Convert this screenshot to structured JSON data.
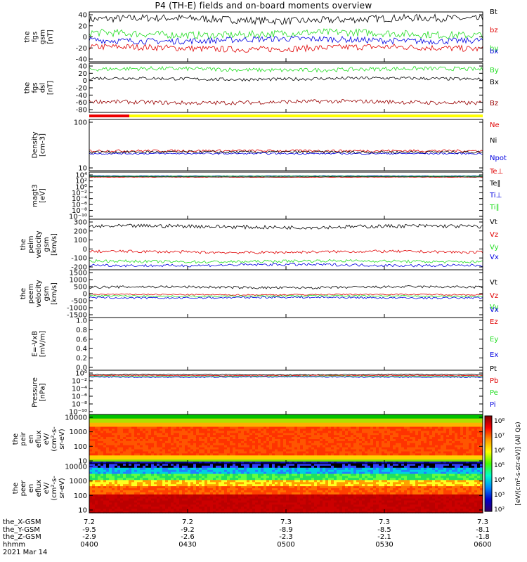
{
  "title": "P4 (TH-E) fields and on-board moments overview",
  "colors": {
    "black": "#000000",
    "red": "#e00000",
    "green": "#22dd22",
    "blue": "#0000e0",
    "darkred": "#990000",
    "yellow": "#ffff00",
    "barred": "#ee0000"
  },
  "chart_data": [
    {
      "type": "line",
      "ylabel": [
        "the",
        "fgs",
        "gsm",
        "[nT]"
      ],
      "yticks": [
        "40",
        "20",
        "0",
        "-20",
        "-40"
      ],
      "ylim": [
        -40,
        40
      ],
      "series": [
        {
          "name": "Bt",
          "color": "black",
          "base": 28,
          "noise": 6
        },
        {
          "name": "bz",
          "color": "red",
          "base": -18,
          "noise": 5
        },
        {
          "name": "by",
          "color": "green",
          "base": 5,
          "noise": 6
        },
        {
          "name": "bx",
          "color": "blue",
          "base": -5,
          "noise": 5
        }
      ]
    },
    {
      "type": "line",
      "ylabel": [
        "the",
        "fgs",
        "dsl",
        "[nT]"
      ],
      "yticks": [
        "40",
        "20",
        "0",
        "-20",
        "-40",
        "-60",
        "-80"
      ],
      "ylim": [
        -80,
        40
      ],
      "series": [
        {
          "name": "By",
          "color": "green",
          "base": 25,
          "noise": 5
        },
        {
          "name": "Bx",
          "color": "black",
          "base": 2,
          "noise": 4
        },
        {
          "name": "Bz",
          "color": "darkred",
          "base": -55,
          "noise": 5
        }
      ]
    },
    {
      "type": "line",
      "ylabel": [
        "Density",
        "[cm-3]"
      ],
      "yticks": [
        "100",
        "10"
      ],
      "ylog": true,
      "ylim": [
        3,
        300
      ],
      "series": [
        {
          "name": "Ne",
          "color": "red",
          "base": 18,
          "noise": 2
        },
        {
          "name": "Ni",
          "color": "black",
          "base": 16,
          "noise": 2
        },
        {
          "name": "Npot",
          "color": "blue",
          "base": 14,
          "noise": 1
        }
      ]
    },
    {
      "type": "line",
      "ylabel": [
        "magt3",
        "[eV]"
      ],
      "yticks": [
        "10⁴",
        "10²",
        "10⁰",
        "10⁻²",
        "10⁻⁴",
        "10⁻⁶",
        "10⁻⁸",
        "10⁻¹⁰"
      ],
      "ylim": [
        -10,
        4
      ],
      "series": [
        {
          "name": "Te⊥",
          "color": "red",
          "base": 2.5,
          "noise": 0.05
        },
        {
          "name": "Te∥",
          "color": "black",
          "base": 2.6,
          "noise": 0.05
        },
        {
          "name": "Ti⊥",
          "color": "blue",
          "base": 2.9,
          "noise": 0.05
        },
        {
          "name": "Ti∥",
          "color": "green",
          "base": 2.8,
          "noise": 0.05
        }
      ]
    },
    {
      "type": "line",
      "ylabel": [
        "the",
        "peim",
        "velocity",
        "gsm",
        "[km/s]"
      ],
      "yticks": [
        "300",
        "200",
        "100",
        "0",
        "-100",
        "-200"
      ],
      "ylim": [
        -220,
        320
      ],
      "series": [
        {
          "name": "Vt",
          "color": "black",
          "base": 240,
          "noise": 20
        },
        {
          "name": "Vz",
          "color": "red",
          "base": -30,
          "noise": 15
        },
        {
          "name": "Vy",
          "color": "green",
          "base": -130,
          "noise": 15
        },
        {
          "name": "Vx",
          "color": "blue",
          "base": -170,
          "noise": 15
        }
      ]
    },
    {
      "type": "line",
      "ylabel": [
        "the",
        "peem",
        "velocity",
        "gsm",
        "[km/s]"
      ],
      "yticks": [
        "1500",
        "1000",
        "500",
        "0",
        "-500",
        "-1000",
        "-1500"
      ],
      "ylim": [
        -1500,
        1500
      ],
      "series": [
        {
          "name": "Vt",
          "color": "black",
          "base": 400,
          "noise": 80
        },
        {
          "name": "Vz",
          "color": "red",
          "base": -60,
          "noise": 40
        },
        {
          "name": "Vy",
          "color": "green",
          "base": -150,
          "noise": 50
        },
        {
          "name": "Vx",
          "color": "blue",
          "base": -250,
          "noise": 60
        }
      ]
    },
    {
      "type": "line",
      "ylabel": [
        "E=-VxB",
        "[mV/m]"
      ],
      "yticks": [
        "1.0",
        "0.8",
        "0.6",
        "0.4",
        "0.2",
        "0.0"
      ],
      "ylim": [
        0,
        1
      ],
      "series": [
        {
          "name": "Ez",
          "color": "red"
        },
        {
          "name": "Ey",
          "color": "green"
        },
        {
          "name": "Ex",
          "color": "blue"
        }
      ]
    },
    {
      "type": "line",
      "ylabel": [
        "Pressure",
        "[nPa]"
      ],
      "yticks": [
        "10⁰",
        "10⁻²",
        "10⁻⁴",
        "10⁻⁶",
        "10⁻⁸",
        "10⁻¹⁰"
      ],
      "ylim": [
        -10,
        1
      ],
      "series": [
        {
          "name": "Pt",
          "color": "black",
          "base": -0.1,
          "noise": 0.1
        },
        {
          "name": "Pb",
          "color": "red",
          "base": -0.3,
          "noise": 0.1
        },
        {
          "name": "Pe",
          "color": "green",
          "base": -0.5,
          "noise": 0.1
        },
        {
          "name": "Pi",
          "color": "blue",
          "base": -0.7,
          "noise": 0.1
        }
      ]
    },
    {
      "type": "heatmap",
      "ylabel": [
        "the",
        "peir",
        "en",
        "eflux",
        "eV/",
        "(cm²-s-",
        "sr-eV)"
      ],
      "yticks": [
        "10000",
        "1000",
        "100",
        "10"
      ]
    },
    {
      "type": "heatmap",
      "ylabel": [
        "the",
        "peer",
        "en",
        "eflux",
        "eV/",
        "(cm²-s-",
        "sr-eV)"
      ],
      "yticks": [
        "10000",
        "1000",
        "100",
        "10"
      ]
    }
  ],
  "colorbar": {
    "label": "[eV/(cm²-s-str-eV)] (All Qs)",
    "ticks": [
      "10⁸",
      "10⁷",
      "10⁶",
      "10⁵",
      "10⁴",
      "10³",
      "10²"
    ]
  },
  "xaxis": {
    "row_labels": [
      "the_X-GSM",
      "the_Y-GSM",
      "the_Z-GSM",
      "hhmm"
    ],
    "date": "2021 Mar 14",
    "ticks": [
      {
        "x": "7.2",
        "y": "-9.5",
        "z": "-2.9",
        "hhmm": "0400"
      },
      {
        "x": "7.2",
        "y": "-9.2",
        "z": "-2.6",
        "hhmm": "0430"
      },
      {
        "x": "7.3",
        "y": "-8.9",
        "z": "-2.3",
        "hhmm": "0500"
      },
      {
        "x": "7.3",
        "y": "-8.5",
        "z": "-2.1",
        "hhmm": "0530"
      },
      {
        "x": "7.3",
        "y": "-8.1",
        "z": "-1.8",
        "hhmm": "0600"
      }
    ]
  }
}
